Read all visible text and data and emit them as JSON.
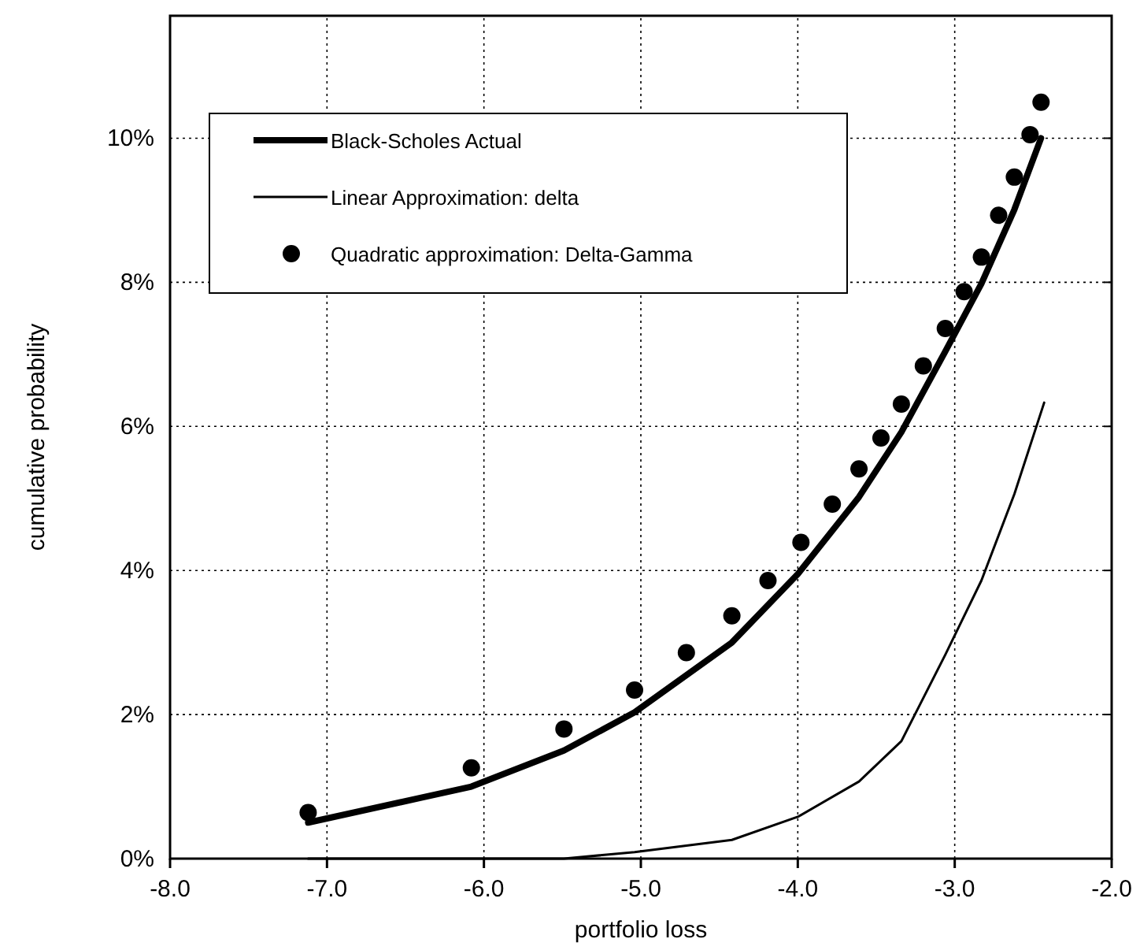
{
  "chart_data": {
    "type": "line",
    "xlabel": "portfolio loss",
    "ylabel": "cumulative probability",
    "xlim": [
      -8,
      -2
    ],
    "xticks": [
      {
        "value": -8,
        "label": "-8.0"
      },
      {
        "value": -7,
        "label": "-7.0"
      },
      {
        "value": -6,
        "label": "-6.0"
      },
      {
        "value": -5,
        "label": "-5.0"
      },
      {
        "value": -4,
        "label": "-4.0"
      },
      {
        "value": -3,
        "label": "-3.0"
      },
      {
        "value": -2,
        "label": "-2.0"
      }
    ],
    "ylim": [
      0,
      11.7
    ],
    "yticks": [
      {
        "value": 0,
        "label": "0%"
      },
      {
        "value": 2,
        "label": "2%"
      },
      {
        "value": 4,
        "label": "4%"
      },
      {
        "value": 6,
        "label": "6%"
      },
      {
        "value": 8,
        "label": "8%"
      },
      {
        "value": 10,
        "label": "10%"
      }
    ],
    "grid": true,
    "legend": "top left",
    "series": [
      {
        "name": "Black-Scholes Actual",
        "color": "#000000",
        "x": [
          -7.12,
          -6.08,
          -5.49,
          -5.04,
          -4.42,
          -4.0,
          -3.61,
          -3.34,
          -3.06,
          -2.83,
          -2.62,
          -2.45
        ],
        "values": [
          0.5,
          1.0,
          1.5,
          2.03,
          3.0,
          3.95,
          5.02,
          5.92,
          7.04,
          7.98,
          9.01,
          10.0
        ]
      },
      {
        "name": "Linear Approximation: delta",
        "color": "#000000",
        "x": [
          -7.12,
          -6.08,
          -5.49,
          -5.04,
          -4.42,
          -4.0,
          -3.61,
          -3.34,
          -3.06,
          -2.83,
          -2.62,
          -2.43
        ],
        "values": [
          0,
          0,
          0,
          0.09,
          0.26,
          0.58,
          1.07,
          1.63,
          2.83,
          3.86,
          5.06,
          6.33
        ]
      },
      {
        "name": "Quadratic approximation: Delta-Gamma",
        "type": "scatter",
        "marker": "circle",
        "color": "#000000",
        "x": [
          -7.12,
          -6.08,
          -5.49,
          -5.04,
          -4.71,
          -4.42,
          -4.19,
          -3.98,
          -3.78,
          -3.61,
          -3.47,
          -3.34,
          -3.2,
          -3.06,
          -2.94,
          -2.83,
          -2.72,
          -2.62,
          -2.52,
          -2.45
        ],
        "values": [
          0.64,
          1.26,
          1.8,
          2.34,
          2.86,
          3.37,
          3.86,
          4.39,
          4.92,
          5.41,
          5.84,
          6.31,
          6.84,
          7.36,
          7.87,
          8.35,
          8.93,
          9.46,
          10.05,
          10.5
        ]
      }
    ]
  }
}
